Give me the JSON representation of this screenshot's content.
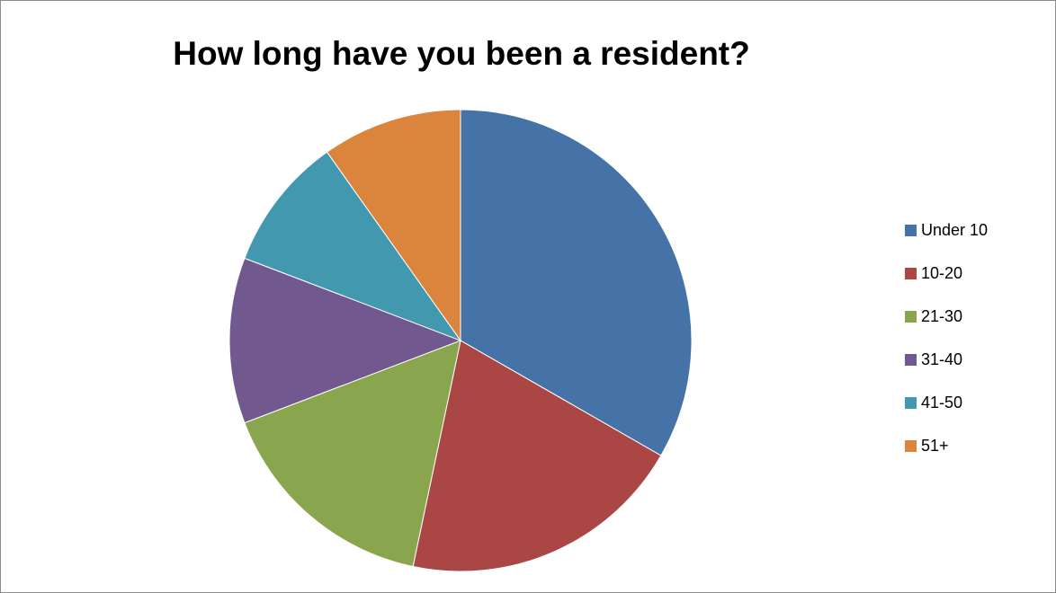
{
  "chart_data": {
    "type": "pie",
    "title": "How long have you been a resident?",
    "categories": [
      "Under 10",
      "10-20",
      "21-30",
      "31-40",
      "41-50",
      "51+"
    ],
    "values": [
      33.3,
      20.0,
      15.9,
      11.6,
      9.4,
      9.8
    ],
    "colors": [
      "#4572a7",
      "#aa4643",
      "#89a54e",
      "#71588f",
      "#4198af",
      "#db843d"
    ],
    "start_angle_deg": 0,
    "direction": "clockwise",
    "legend_position": "right"
  }
}
